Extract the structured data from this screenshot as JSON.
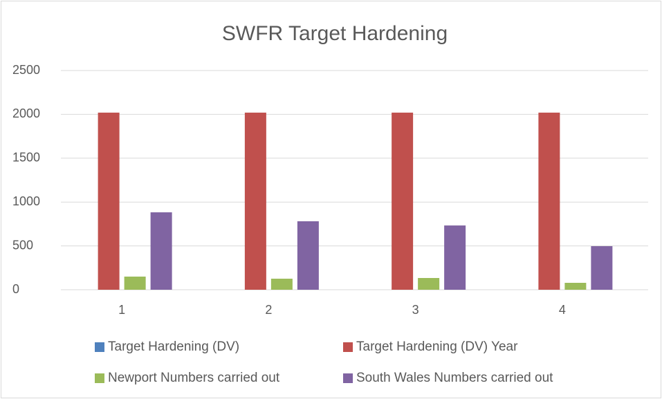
{
  "chart_data": {
    "type": "bar",
    "title": "SWFR Target Hardening",
    "categories": [
      "1",
      "2",
      "3",
      "4"
    ],
    "series": [
      {
        "name": "Target Hardening (DV)",
        "color": "#4f81bd",
        "values": [
          0,
          0,
          0,
          0
        ]
      },
      {
        "name": "Target Hardening (DV) Year",
        "color": "#c0504d",
        "values": [
          2020,
          2020,
          2020,
          2020
        ]
      },
      {
        "name": "Newport Numbers carried out",
        "color": "#9bbb59",
        "values": [
          150,
          126,
          134,
          79
        ]
      },
      {
        "name": "South Wales Numbers carried out",
        "color": "#8064a2",
        "values": [
          883,
          781,
          733,
          497
        ]
      }
    ],
    "ylim": [
      0,
      2500
    ],
    "yticks": [
      0,
      500,
      1000,
      1500,
      2000,
      2500
    ],
    "grid": true,
    "legend": "bottom"
  }
}
